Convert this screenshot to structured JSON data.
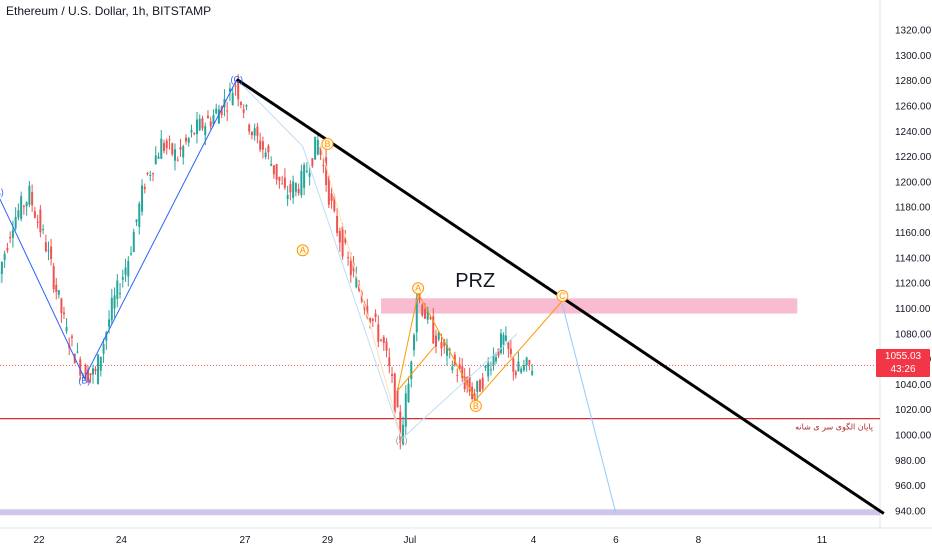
{
  "header": {
    "title": "Ethereum / U.S. Dollar, 1h, BITSTAMP"
  },
  "price_tag": {
    "price": "1055.03",
    "countdown": "43:26"
  },
  "colors": {
    "up": "#26a69a",
    "down": "#ef5350",
    "trend": "#000000",
    "blue_wave": "#2962ff",
    "orange_wave": "#ff9800",
    "faint_wave": "#bbdefb",
    "prz_fill": "#f8bbd0",
    "support": "#d32f2f",
    "bottom_band": "#d1c4e9"
  },
  "chart_data": {
    "type": "candlestick",
    "symbol": "Ethereum / U.S. Dollar",
    "interval": "1h",
    "exchange": "BITSTAMP",
    "y_axis": {
      "ticks": [
        "1320.00",
        "1300.00",
        "1280.00",
        "1260.00",
        "1240.00",
        "1220.00",
        "1200.00",
        "1180.00",
        "1160.00",
        "1140.00",
        "1120.00",
        "1100.00",
        "1080.00",
        "1060.00",
        "1040.00",
        "1020.00",
        "1000.00",
        "980.00",
        "960.00",
        "940.00"
      ],
      "range": [
        935,
        1325
      ]
    },
    "x_axis": {
      "ticks": [
        {
          "label": "22",
          "day": 22
        },
        {
          "label": "24",
          "day": 24
        },
        {
          "label": "27",
          "day": 27
        },
        {
          "label": "29",
          "day": 29
        },
        {
          "label": "Jul",
          "day": 31
        },
        {
          "label": "4",
          "day": 34
        },
        {
          "label": "6",
          "day": 36
        },
        {
          "label": "8",
          "day": 38
        },
        {
          "label": "11",
          "day": 41
        }
      ]
    },
    "price_path": [
      [
        21.0,
        1120
      ],
      [
        21.4,
        1170
      ],
      [
        21.8,
        1190
      ],
      [
        22.2,
        1150
      ],
      [
        22.7,
        1080
      ],
      [
        23.1,
        1050
      ],
      [
        23.4,
        1048
      ],
      [
        23.8,
        1100
      ],
      [
        24.2,
        1140
      ],
      [
        24.6,
        1200
      ],
      [
        25.0,
        1230
      ],
      [
        25.4,
        1220
      ],
      [
        25.8,
        1240
      ],
      [
        26.2,
        1250
      ],
      [
        26.6,
        1265
      ],
      [
        26.8,
        1278
      ],
      [
        27.2,
        1240
      ],
      [
        27.6,
        1220
      ],
      [
        28.0,
        1190
      ],
      [
        28.4,
        1200
      ],
      [
        28.8,
        1232
      ],
      [
        29.2,
        1170
      ],
      [
        29.6,
        1130
      ],
      [
        30.0,
        1100
      ],
      [
        30.4,
        1070
      ],
      [
        30.6,
        1040
      ],
      [
        30.8,
        1000
      ],
      [
        31.0,
        1040
      ],
      [
        31.2,
        1112
      ],
      [
        31.6,
        1080
      ],
      [
        32.0,
        1060
      ],
      [
        32.3,
        1045
      ],
      [
        32.6,
        1030
      ],
      [
        33.0,
        1060
      ],
      [
        33.3,
        1075
      ],
      [
        33.6,
        1050
      ],
      [
        34.0,
        1055
      ]
    ],
    "last_price": 1055.03,
    "wave_labels": [
      {
        "text": "(A)",
        "day": 21.0,
        "price": 1192,
        "color": "blue"
      },
      {
        "text": "(B)",
        "day": 23.1,
        "price": 1043,
        "color": "blue"
      },
      {
        "text": "(C)",
        "day": 26.8,
        "price": 1281,
        "color": "blue"
      },
      {
        "text": "B",
        "day": 29.0,
        "price": 1230,
        "color": "orange"
      },
      {
        "text": "A",
        "day": 28.4,
        "price": 1146,
        "color": "orange"
      },
      {
        "text": "A",
        "day": 31.2,
        "price": 1116,
        "color": "orange"
      },
      {
        "text": "B",
        "day": 32.6,
        "price": 1023,
        "color": "orange"
      },
      {
        "text": "C",
        "day": 34.7,
        "price": 1110,
        "color": "orange"
      },
      {
        "text": "(A)",
        "day": 30.8,
        "price": 996,
        "color": "gray"
      }
    ],
    "trendline": {
      "from": {
        "day": 26.8,
        "price": 1281
      },
      "to": {
        "day": 42.5,
        "price": 938
      }
    },
    "prz_zone": {
      "label": "PRZ",
      "from_day": 30.3,
      "to_day": 40.4,
      "low": 1096,
      "high": 1108
    },
    "support_line": {
      "price": 1013,
      "label": "پایان الگوی سر ی شانه"
    },
    "bottom_band": {
      "price": 939
    }
  }
}
